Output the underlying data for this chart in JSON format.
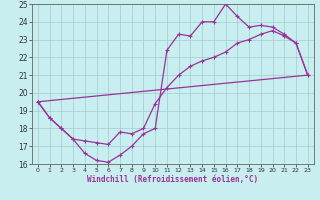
{
  "bg_color": "#c8eef0",
  "grid_color": "#a0ccd0",
  "line_color": "#993399",
  "xlim": [
    -0.5,
    23.5
  ],
  "ylim": [
    16,
    25
  ],
  "xlabel": "Windchill (Refroidissement éolien,°C)",
  "xtick_labels": [
    "0",
    "1",
    "2",
    "3",
    "4",
    "5",
    "6",
    "7",
    "8",
    "9",
    "10",
    "11",
    "12",
    "13",
    "14",
    "15",
    "16",
    "17",
    "18",
    "19",
    "20",
    "21",
    "22",
    "23"
  ],
  "xtick_pos": [
    0,
    1,
    2,
    3,
    4,
    5,
    6,
    7,
    8,
    9,
    10,
    11,
    12,
    13,
    14,
    15,
    16,
    17,
    18,
    19,
    20,
    21,
    22,
    23
  ],
  "yticks": [
    16,
    17,
    18,
    19,
    20,
    21,
    22,
    23,
    24,
    25
  ],
  "line1_x": [
    0,
    1,
    2,
    3,
    4,
    5,
    6,
    7,
    8,
    9,
    10,
    11,
    12,
    13,
    14,
    15,
    16,
    17,
    18,
    19,
    20,
    21,
    22,
    23
  ],
  "line1_y": [
    19.5,
    18.6,
    18.0,
    17.4,
    16.6,
    16.2,
    16.1,
    16.5,
    17.0,
    17.7,
    18.0,
    22.4,
    23.3,
    23.2,
    24.0,
    24.0,
    25.0,
    24.3,
    23.7,
    23.8,
    23.7,
    23.3,
    22.8,
    21.0
  ],
  "line2_x": [
    0,
    1,
    2,
    3,
    4,
    5,
    6,
    7,
    8,
    9,
    10,
    11,
    12,
    13,
    14,
    15,
    16,
    17,
    18,
    19,
    20,
    21,
    22,
    23
  ],
  "line2_y": [
    19.5,
    18.6,
    18.0,
    17.4,
    17.3,
    17.2,
    17.1,
    17.8,
    17.7,
    18.0,
    19.4,
    20.3,
    21.0,
    21.5,
    21.8,
    22.0,
    22.3,
    22.8,
    23.0,
    23.3,
    23.5,
    23.2,
    22.8,
    21.0
  ],
  "line3_x": [
    0,
    23
  ],
  "line3_y": [
    19.5,
    21.0
  ]
}
